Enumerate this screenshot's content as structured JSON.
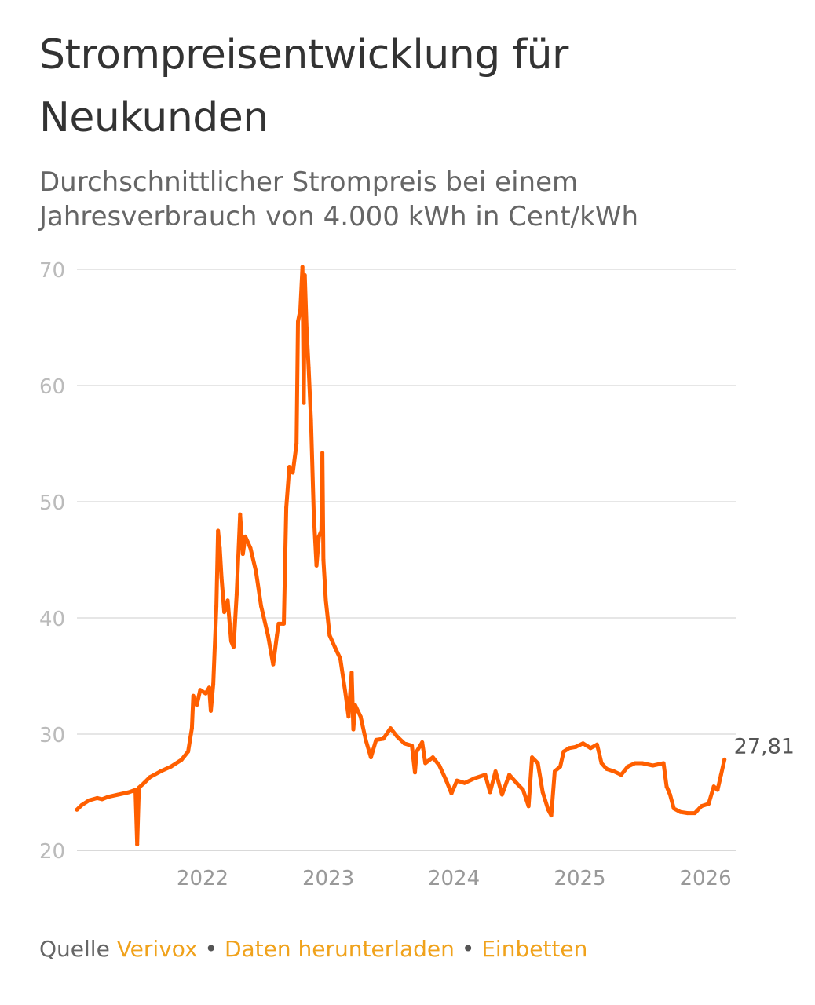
{
  "header": {
    "title": "Strompreisentwicklung für Neukunden",
    "subtitle": "Durchschnittlicher Strompreis bei einem Jahresverbrauch von 4.000 kWh in Cent/kWh"
  },
  "footer": {
    "source_prefix": "Quelle",
    "source_link": "Verivox",
    "separator": "•",
    "download_link": "Daten herunterladen",
    "embed_link": "Einbetten"
  },
  "colors": {
    "line": "#ff5f00",
    "grid": "#e6e6e6",
    "axis_text": "#bbbbbb",
    "link": "#f0a21b"
  },
  "chart_data": {
    "type": "line",
    "title": "Strompreisentwicklung für Neukunden",
    "subtitle": "Durchschnittlicher Strompreis bei einem Jahresverbrauch von 4.000 kWh in Cent/kWh",
    "xlabel": "",
    "ylabel": "",
    "ylim": [
      20,
      70
    ],
    "yticks": [
      20,
      30,
      40,
      50,
      60,
      70
    ],
    "xticks": [
      {
        "label": "2022",
        "x": "2022-01-01"
      },
      {
        "label": "2023",
        "x": "2023-01-01"
      },
      {
        "label": "2024",
        "x": "2024-01-01"
      },
      {
        "label": "2025",
        "x": "2025-01-01"
      },
      {
        "label": "2026",
        "x": "2026-01-01"
      }
    ],
    "xlim": [
      "2021-01-01",
      "2026-04-01"
    ],
    "grid": true,
    "last_value_label": "27,81",
    "series": [
      {
        "values": [
          [
            "2021-01-01",
            23.5
          ],
          [
            "2021-01-15",
            23.9
          ],
          [
            "2021-02-05",
            24.3
          ],
          [
            "2021-03-01",
            24.5
          ],
          [
            "2021-03-15",
            24.4
          ],
          [
            "2021-04-01",
            24.6
          ],
          [
            "2021-05-01",
            24.8
          ],
          [
            "2021-06-01",
            25.0
          ],
          [
            "2021-06-20",
            25.2
          ],
          [
            "2021-06-25",
            20.5
          ],
          [
            "2021-06-30",
            25.4
          ],
          [
            "2021-07-15",
            25.8
          ],
          [
            "2021-08-01",
            26.3
          ],
          [
            "2021-09-01",
            26.8
          ],
          [
            "2021-10-01",
            27.2
          ],
          [
            "2021-11-01",
            27.8
          ],
          [
            "2021-11-20",
            28.5
          ],
          [
            "2021-12-01",
            30.5
          ],
          [
            "2021-12-05",
            33.3
          ],
          [
            "2021-12-15",
            32.5
          ],
          [
            "2021-12-25",
            33.8
          ],
          [
            "2022-01-10",
            33.5
          ],
          [
            "2022-01-20",
            34.0
          ],
          [
            "2022-01-25",
            32.0
          ],
          [
            "2022-02-01",
            34.3
          ],
          [
            "2022-02-10",
            41.0
          ],
          [
            "2022-02-15",
            47.5
          ],
          [
            "2022-02-20",
            46.0
          ],
          [
            "2022-02-25",
            43.5
          ],
          [
            "2022-03-05",
            40.5
          ],
          [
            "2022-03-15",
            41.5
          ],
          [
            "2022-03-25",
            38.0
          ],
          [
            "2022-04-01",
            37.5
          ],
          [
            "2022-04-10",
            42.0
          ],
          [
            "2022-04-20",
            48.9
          ],
          [
            "2022-04-28",
            45.5
          ],
          [
            "2022-05-05",
            47.0
          ],
          [
            "2022-05-20",
            46.0
          ],
          [
            "2022-06-05",
            44.0
          ],
          [
            "2022-06-20",
            41.0
          ],
          [
            "2022-07-10",
            38.5
          ],
          [
            "2022-07-25",
            36.0
          ],
          [
            "2022-08-05",
            38.5
          ],
          [
            "2022-08-10",
            39.5
          ],
          [
            "2022-08-25",
            39.5
          ],
          [
            "2022-09-01",
            49.5
          ],
          [
            "2022-09-10",
            53.0
          ],
          [
            "2022-09-20",
            52.5
          ],
          [
            "2022-10-01",
            55.0
          ],
          [
            "2022-10-05",
            65.5
          ],
          [
            "2022-10-12",
            66.5
          ],
          [
            "2022-10-18",
            70.2
          ],
          [
            "2022-10-22",
            58.5
          ],
          [
            "2022-10-25",
            69.5
          ],
          [
            "2022-10-30",
            65.0
          ],
          [
            "2022-11-05",
            61.5
          ],
          [
            "2022-11-12",
            57.0
          ],
          [
            "2022-11-20",
            49.0
          ],
          [
            "2022-11-28",
            44.5
          ],
          [
            "2022-12-05",
            47.0
          ],
          [
            "2022-12-12",
            47.5
          ],
          [
            "2022-12-15",
            54.2
          ],
          [
            "2022-12-18",
            45.0
          ],
          [
            "2022-12-25",
            41.5
          ],
          [
            "2023-01-05",
            38.5
          ],
          [
            "2023-01-20",
            37.5
          ],
          [
            "2023-02-05",
            36.5
          ],
          [
            "2023-02-20",
            33.5
          ],
          [
            "2023-03-01",
            31.5
          ],
          [
            "2023-03-10",
            35.3
          ],
          [
            "2023-03-15",
            30.4
          ],
          [
            "2023-03-20",
            32.5
          ],
          [
            "2023-04-05",
            31.5
          ],
          [
            "2023-04-20",
            29.5
          ],
          [
            "2023-05-05",
            28.0
          ],
          [
            "2023-05-20",
            29.5
          ],
          [
            "2023-06-10",
            29.6
          ],
          [
            "2023-07-01",
            30.5
          ],
          [
            "2023-07-20",
            29.8
          ],
          [
            "2023-08-10",
            29.2
          ],
          [
            "2023-09-01",
            29.0
          ],
          [
            "2023-09-10",
            26.7
          ],
          [
            "2023-09-15",
            28.5
          ],
          [
            "2023-10-01",
            29.3
          ],
          [
            "2023-10-10",
            27.5
          ],
          [
            "2023-11-01",
            28.0
          ],
          [
            "2023-11-20",
            27.3
          ],
          [
            "2023-12-10",
            26.0
          ],
          [
            "2023-12-25",
            24.9
          ],
          [
            "2024-01-10",
            26.0
          ],
          [
            "2024-02-01",
            25.8
          ],
          [
            "2024-03-01",
            26.2
          ],
          [
            "2024-04-01",
            26.5
          ],
          [
            "2024-04-15",
            25.0
          ],
          [
            "2024-05-01",
            26.8
          ],
          [
            "2024-05-20",
            24.8
          ],
          [
            "2024-06-10",
            26.5
          ],
          [
            "2024-07-01",
            25.8
          ],
          [
            "2024-07-20",
            25.2
          ],
          [
            "2024-08-05",
            23.8
          ],
          [
            "2024-08-15",
            28.0
          ],
          [
            "2024-09-01",
            27.5
          ],
          [
            "2024-09-15",
            25.0
          ],
          [
            "2024-10-01",
            23.5
          ],
          [
            "2024-10-10",
            23.0
          ],
          [
            "2024-10-20",
            26.8
          ],
          [
            "2024-11-05",
            27.2
          ],
          [
            "2024-11-15",
            28.5
          ],
          [
            "2024-12-01",
            28.8
          ],
          [
            "2024-12-20",
            28.9
          ],
          [
            "2025-01-10",
            29.2
          ],
          [
            "2025-02-01",
            28.8
          ],
          [
            "2025-02-20",
            29.1
          ],
          [
            "2025-03-05",
            27.5
          ],
          [
            "2025-03-20",
            27.0
          ],
          [
            "2025-04-10",
            26.8
          ],
          [
            "2025-05-01",
            26.5
          ],
          [
            "2025-05-20",
            27.2
          ],
          [
            "2025-06-10",
            27.5
          ],
          [
            "2025-07-01",
            27.5
          ],
          [
            "2025-08-01",
            27.3
          ],
          [
            "2025-09-01",
            27.5
          ],
          [
            "2025-09-10",
            25.5
          ],
          [
            "2025-09-20",
            24.8
          ],
          [
            "2025-10-01",
            23.6
          ],
          [
            "2025-10-20",
            23.3
          ],
          [
            "2025-11-10",
            23.2
          ],
          [
            "2025-12-01",
            23.2
          ],
          [
            "2025-12-20",
            23.8
          ],
          [
            "2026-01-10",
            24.0
          ],
          [
            "2026-01-25",
            25.5
          ],
          [
            "2026-02-05",
            25.2
          ],
          [
            "2026-02-15",
            26.5
          ],
          [
            "2026-02-25",
            27.81
          ]
        ]
      }
    ]
  }
}
